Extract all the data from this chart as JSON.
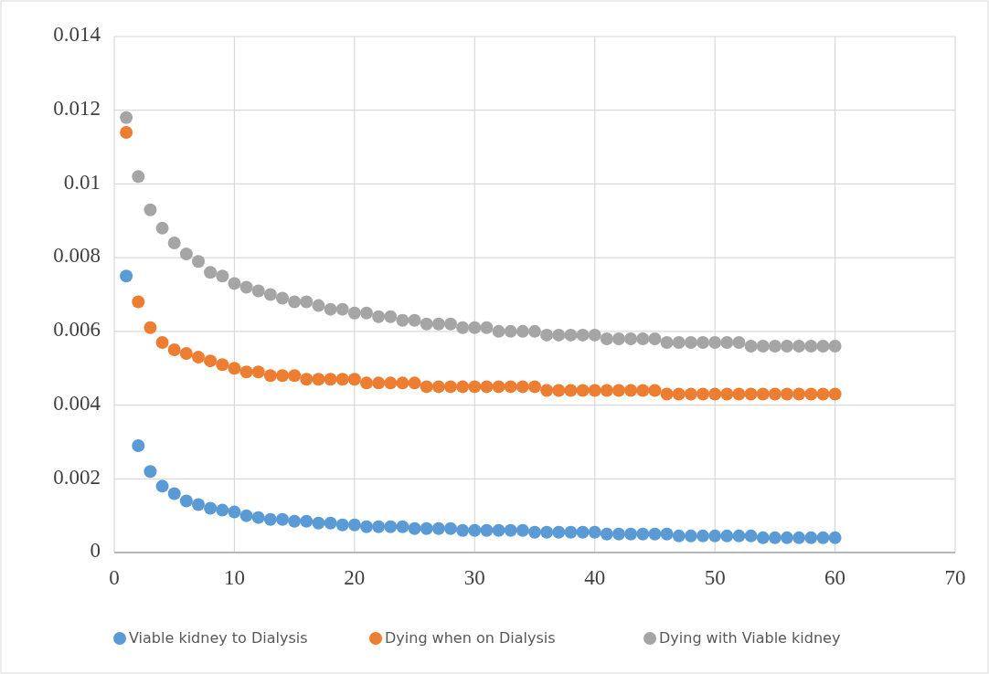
{
  "chart_data": {
    "type": "scatter",
    "x": [
      1,
      2,
      3,
      4,
      5,
      6,
      7,
      8,
      9,
      10,
      11,
      12,
      13,
      14,
      15,
      16,
      17,
      18,
      19,
      20,
      21,
      22,
      23,
      24,
      25,
      26,
      27,
      28,
      29,
      30,
      31,
      32,
      33,
      34,
      35,
      36,
      37,
      38,
      39,
      40,
      41,
      42,
      43,
      44,
      45,
      46,
      47,
      48,
      49,
      50,
      51,
      52,
      53,
      54,
      55,
      56,
      57,
      58,
      59,
      60
    ],
    "series": [
      {
        "name": "Viable kidney to Dialysis",
        "color": "#5b9bd5",
        "values": [
          0.0075,
          0.0029,
          0.0022,
          0.0018,
          0.0016,
          0.0014,
          0.0013,
          0.0012,
          0.00115,
          0.0011,
          0.001,
          0.00095,
          0.0009,
          0.0009,
          0.00085,
          0.00085,
          0.0008,
          0.0008,
          0.00075,
          0.00075,
          0.0007,
          0.0007,
          0.0007,
          0.0007,
          0.00065,
          0.00065,
          0.00065,
          0.00065,
          0.0006,
          0.0006,
          0.0006,
          0.0006,
          0.0006,
          0.0006,
          0.00055,
          0.00055,
          0.00055,
          0.00055,
          0.00055,
          0.00055,
          0.0005,
          0.0005,
          0.0005,
          0.0005,
          0.0005,
          0.0005,
          0.00045,
          0.00045,
          0.00045,
          0.00045,
          0.00045,
          0.00045,
          0.00045,
          0.0004,
          0.0004,
          0.0004,
          0.0004,
          0.0004,
          0.0004,
          0.0004
        ]
      },
      {
        "name": "Dying when on Dialysis",
        "color": "#ed7d31",
        "values": [
          0.0114,
          0.0068,
          0.0061,
          0.0057,
          0.0055,
          0.0054,
          0.0053,
          0.0052,
          0.0051,
          0.005,
          0.0049,
          0.0049,
          0.0048,
          0.0048,
          0.0048,
          0.0047,
          0.0047,
          0.0047,
          0.0047,
          0.0047,
          0.0046,
          0.0046,
          0.0046,
          0.0046,
          0.0046,
          0.0045,
          0.0045,
          0.0045,
          0.0045,
          0.0045,
          0.0045,
          0.0045,
          0.0045,
          0.0045,
          0.0045,
          0.0044,
          0.0044,
          0.0044,
          0.0044,
          0.0044,
          0.0044,
          0.0044,
          0.0044,
          0.0044,
          0.0044,
          0.0043,
          0.0043,
          0.0043,
          0.0043,
          0.0043,
          0.0043,
          0.0043,
          0.0043,
          0.0043,
          0.0043,
          0.0043,
          0.0043,
          0.0043,
          0.0043,
          0.0043
        ]
      },
      {
        "name": "Dying with Viable kidney",
        "color": "#a5a5a5",
        "values": [
          0.0118,
          0.0102,
          0.0093,
          0.0088,
          0.0084,
          0.0081,
          0.0079,
          0.0076,
          0.0075,
          0.0073,
          0.0072,
          0.0071,
          0.007,
          0.0069,
          0.0068,
          0.0068,
          0.0067,
          0.0066,
          0.0066,
          0.0065,
          0.0065,
          0.0064,
          0.0064,
          0.0063,
          0.0063,
          0.0062,
          0.0062,
          0.0062,
          0.0061,
          0.0061,
          0.0061,
          0.006,
          0.006,
          0.006,
          0.006,
          0.0059,
          0.0059,
          0.0059,
          0.0059,
          0.0059,
          0.0058,
          0.0058,
          0.0058,
          0.0058,
          0.0058,
          0.0057,
          0.0057,
          0.0057,
          0.0057,
          0.0057,
          0.0057,
          0.0057,
          0.0056,
          0.0056,
          0.0056,
          0.0056,
          0.0056,
          0.0056,
          0.0056,
          0.0056
        ]
      }
    ],
    "xlim": [
      0,
      70
    ],
    "xticks": [
      0,
      10,
      20,
      30,
      40,
      50,
      60,
      70
    ],
    "ylim": [
      0,
      0.014
    ],
    "yticks": [
      0,
      0.002,
      0.004,
      0.006,
      0.008,
      0.01,
      0.012,
      0.014
    ],
    "grid": true,
    "legend": "bottom",
    "marker": "circle"
  }
}
